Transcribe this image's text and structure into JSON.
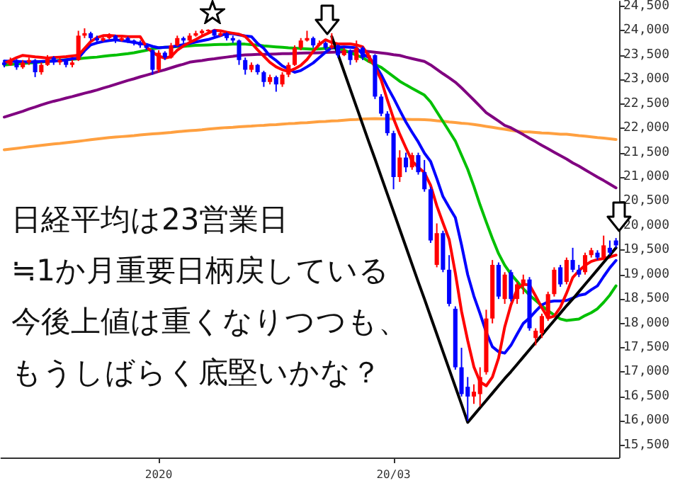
{
  "chart_data": {
    "type": "candlestick",
    "categories": [
      null,
      null,
      null,
      null,
      null,
      null,
      null,
      null,
      null,
      null,
      null,
      null,
      null,
      null,
      null,
      null,
      null,
      null,
      null,
      null,
      null,
      null,
      null,
      null,
      null,
      "2020",
      null,
      null,
      null,
      null,
      null,
      null,
      null,
      null,
      null,
      null,
      null,
      null,
      null,
      null,
      null,
      null,
      null,
      null,
      null,
      null,
      null,
      null,
      null,
      null,
      null,
      null,
      null,
      null,
      null,
      null,
      null,
      null,
      null,
      null,
      null,
      null,
      null,
      "20/03",
      null,
      null,
      null,
      null,
      null,
      null,
      null,
      null,
      null,
      null,
      null,
      null,
      null,
      null,
      null,
      null,
      null,
      null,
      null,
      null,
      null,
      null,
      null,
      null,
      null,
      null,
      null,
      null,
      null,
      null,
      null,
      null,
      null,
      null,
      null,
      null
    ],
    "ohlc": [
      [
        23350,
        23400,
        23250,
        23300
      ],
      [
        23300,
        23450,
        23280,
        23400
      ],
      [
        23400,
        23420,
        23200,
        23250
      ],
      [
        23250,
        23400,
        23220,
        23350
      ],
      [
        23350,
        23450,
        23300,
        23400
      ],
      [
        23400,
        23420,
        23050,
        23150
      ],
      [
        23150,
        23350,
        23100,
        23300
      ],
      [
        23300,
        23500,
        23280,
        23450
      ],
      [
        23450,
        23480,
        23300,
        23350
      ],
      [
        23350,
        23450,
        23300,
        23400
      ],
      [
        23400,
        23420,
        23250,
        23300
      ],
      [
        23300,
        23400,
        23250,
        23350
      ],
      [
        23400,
        24000,
        23380,
        23900
      ],
      [
        23900,
        24050,
        23850,
        23950
      ],
      [
        23950,
        23980,
        23800,
        23850
      ],
      [
        23850,
        23900,
        23750,
        23800
      ],
      [
        23800,
        23900,
        23780,
        23850
      ],
      [
        23850,
        23950,
        23820,
        23900
      ],
      [
        23900,
        23920,
        23750,
        23800
      ],
      [
        23800,
        23900,
        23780,
        23850
      ],
      [
        23850,
        23880,
        23750,
        23800
      ],
      [
        23800,
        23820,
        23700,
        23750
      ],
      [
        23750,
        23800,
        23650,
        23700
      ],
      [
        23700,
        23720,
        23600,
        23650
      ],
      [
        23600,
        23620,
        23100,
        23200
      ],
      [
        23200,
        23600,
        23150,
        23550
      ],
      [
        23550,
        23580,
        23400,
        23450
      ],
      [
        23450,
        23750,
        23430,
        23700
      ],
      [
        23700,
        23900,
        23680,
        23850
      ],
      [
        23850,
        23880,
        23750,
        23800
      ],
      [
        23800,
        23950,
        23780,
        23900
      ],
      [
        23900,
        24000,
        23880,
        23950
      ],
      [
        23950,
        24030,
        23900,
        24000
      ],
      [
        24000,
        24030,
        23950,
        24020
      ],
      [
        24020,
        24030,
        23850,
        23900
      ],
      [
        23900,
        24000,
        23880,
        23950
      ],
      [
        23950,
        23970,
        23800,
        23850
      ],
      [
        23850,
        23900,
        23750,
        23800
      ],
      [
        23800,
        23820,
        23300,
        23400
      ],
      [
        23400,
        23450,
        23100,
        23200
      ],
      [
        23200,
        23350,
        23150,
        23300
      ],
      [
        23300,
        23320,
        23100,
        23150
      ],
      [
        23150,
        23180,
        22850,
        22950
      ],
      [
        22950,
        23100,
        22900,
        23050
      ],
      [
        23050,
        23080,
        22750,
        22900
      ],
      [
        22900,
        23150,
        22850,
        23100
      ],
      [
        23100,
        23350,
        23050,
        23300
      ],
      [
        23300,
        23700,
        23280,
        23650
      ],
      [
        23650,
        23850,
        23600,
        23800
      ],
      [
        23800,
        24000,
        23780,
        23850
      ],
      [
        23850,
        23880,
        23650,
        23700
      ],
      [
        23700,
        23800,
        23680,
        23750
      ],
      [
        23750,
        23780,
        23600,
        23650
      ],
      [
        23650,
        23950,
        23620,
        23700
      ],
      [
        23700,
        23720,
        23450,
        23500
      ],
      [
        23500,
        23650,
        23480,
        23600
      ],
      [
        23600,
        23620,
        23300,
        23400
      ],
      [
        23400,
        23800,
        23350,
        23650
      ],
      [
        23650,
        23680,
        23400,
        23450
      ],
      [
        23450,
        23550,
        23350,
        23500
      ],
      [
        23500,
        23520,
        22600,
        22650
      ],
      [
        22650,
        22700,
        22250,
        22300
      ],
      [
        22300,
        22350,
        21850,
        21900
      ],
      [
        21900,
        21950,
        20750,
        21000
      ],
      [
        21000,
        21550,
        20900,
        21400
      ],
      [
        21400,
        21500,
        21100,
        21200
      ],
      [
        21200,
        21500,
        21150,
        21450
      ],
      [
        21450,
        21500,
        21050,
        21100
      ],
      [
        21100,
        21350,
        20700,
        20750
      ],
      [
        20750,
        20800,
        19650,
        19700
      ],
      [
        19200,
        20050,
        19150,
        19850
      ],
      [
        19850,
        19900,
        19050,
        19100
      ],
      [
        19100,
        19400,
        18350,
        18400
      ],
      [
        18300,
        18350,
        17050,
        17100
      ],
      [
        17100,
        17500,
        16500,
        16550
      ],
      [
        16700,
        16900,
        16000,
        16500
      ],
      [
        16500,
        16750,
        16350,
        16600
      ],
      [
        16550,
        17100,
        16300,
        16900
      ],
      [
        17000,
        18280,
        16950,
        18100
      ],
      [
        18100,
        19300,
        18000,
        19200
      ],
      [
        19200,
        19250,
        18500,
        18550
      ],
      [
        18500,
        19050,
        18400,
        19000
      ],
      [
        19050,
        19100,
        18450,
        18500
      ],
      [
        18500,
        18850,
        18400,
        18800
      ],
      [
        18800,
        19000,
        18600,
        18900
      ],
      [
        18900,
        18950,
        17850,
        17900
      ],
      [
        17700,
        17900,
        17550,
        17850
      ],
      [
        17800,
        18200,
        17700,
        18150
      ],
      [
        18100,
        18650,
        18050,
        18600
      ],
      [
        18600,
        19150,
        18550,
        19100
      ],
      [
        19150,
        19200,
        18750,
        18800
      ],
      [
        18850,
        19350,
        18800,
        19300
      ],
      [
        19300,
        19550,
        19050,
        19100
      ],
      [
        19100,
        19200,
        18950,
        19000
      ],
      [
        19050,
        19450,
        19000,
        19400
      ],
      [
        19400,
        19550,
        19350,
        19500
      ],
      [
        19450,
        19500,
        19300,
        19350
      ],
      [
        19350,
        19800,
        19300,
        19600
      ],
      [
        19550,
        19700,
        19400,
        19450
      ],
      [
        19700,
        19750,
        19550,
        19600
      ]
    ],
    "colors": [
      "#0000ff",
      "#ff0000",
      "#0000ff",
      "#ff0000",
      "#ff0000",
      "#0000ff",
      "#ff0000",
      "#ff0000",
      "#0000ff",
      "#ff0000",
      "#0000ff",
      "#ff0000",
      "#ff0000",
      "#ff0000",
      "#0000ff",
      "#0000ff",
      "#ff0000",
      "#ff0000",
      "#0000ff",
      "#ff0000",
      "#0000ff",
      "#0000ff",
      "#0000ff",
      "#0000ff",
      "#0000ff",
      "#ff0000",
      "#0000ff",
      "#ff0000",
      "#ff0000",
      "#0000ff",
      "#ff0000",
      "#ff0000",
      "#ff0000",
      "#ff0000",
      "#0000ff",
      "#ff0000",
      "#0000ff",
      "#0000ff",
      "#0000ff",
      "#0000ff",
      "#ff0000",
      "#0000ff",
      "#0000ff",
      "#ff0000",
      "#0000ff",
      "#ff0000",
      "#ff0000",
      "#ff0000",
      "#ff0000",
      "#ff0000",
      "#0000ff",
      "#ff0000",
      "#0000ff",
      "#ff0000",
      "#0000ff",
      "#ff0000",
      "#0000ff",
      "#ff0000",
      "#0000ff",
      "#ff0000",
      "#0000ff",
      "#0000ff",
      "#0000ff",
      "#0000ff",
      "#ff0000",
      "#0000ff",
      "#ff0000",
      "#0000ff",
      "#0000ff",
      "#0000ff",
      "#ff0000",
      "#0000ff",
      "#0000ff",
      "#0000ff",
      "#0000ff",
      "#0000ff",
      "#ff0000",
      "#ff0000",
      "#ff0000",
      "#ff0000",
      "#0000ff",
      "#ff0000",
      "#0000ff",
      "#ff0000",
      "#ff0000",
      "#0000ff",
      "#ff0000",
      "#ff0000",
      "#ff0000",
      "#ff0000",
      "#0000ff",
      "#ff0000",
      "#0000ff",
      "#0000ff",
      "#ff0000",
      "#ff0000",
      "#0000ff",
      "#ff0000",
      "#0000ff",
      "#0000ff"
    ],
    "series": [
      {
        "type": "line",
        "color": "#ffa040",
        "values": [
          21560,
          21575,
          21590,
          21605,
          21620,
          21635,
          21650,
          21665,
          21680,
          21690,
          21705,
          21720,
          21735,
          21750,
          21765,
          21780,
          21795,
          21810,
          21820,
          21830,
          21840,
          21850,
          21865,
          21875,
          21885,
          21895,
          21905,
          21915,
          21930,
          21940,
          21950,
          21960,
          21970,
          21985,
          21995,
          22005,
          22015,
          22020,
          22030,
          22040,
          22045,
          22055,
          22060,
          22070,
          22075,
          22085,
          22095,
          22100,
          22110,
          22115,
          22125,
          22135,
          22140,
          22150,
          22155,
          22165,
          22175,
          22180,
          22190,
          22195,
          22200,
          22195,
          22195,
          22190,
          22190,
          22185,
          22180,
          22180,
          22175,
          22170,
          22155,
          22145,
          22130,
          22120,
          22105,
          22095,
          22080,
          22060,
          22040,
          22020,
          22000,
          21980,
          21960,
          21940,
          21930,
          21925,
          21915,
          21905,
          21900,
          21890,
          21880,
          21880,
          21865,
          21850,
          21840,
          21825,
          21810,
          21800,
          21785,
          21770
        ]
      },
      {
        "type": "line",
        "color": "#800080",
        "values": [
          22230,
          22270,
          22310,
          22350,
          22395,
          22435,
          22480,
          22520,
          22555,
          22585,
          22620,
          22650,
          22685,
          22720,
          22750,
          22785,
          22825,
          22860,
          22900,
          22940,
          22980,
          23015,
          23055,
          23090,
          23125,
          23165,
          23200,
          23240,
          23280,
          23315,
          23355,
          23375,
          23390,
          23410,
          23425,
          23445,
          23460,
          23475,
          23495,
          23505,
          23510,
          23515,
          23515,
          23520,
          23525,
          23530,
          23530,
          23535,
          23540,
          23545,
          23545,
          23550,
          23555,
          23560,
          23565,
          23570,
          23575,
          23585,
          23590,
          23575,
          23560,
          23545,
          23530,
          23510,
          23495,
          23460,
          23430,
          23400,
          23370,
          23300,
          23210,
          23120,
          23035,
          22945,
          22830,
          22705,
          22580,
          22450,
          22320,
          22235,
          22150,
          22060,
          22010,
          21940,
          21870,
          21795,
          21725,
          21650,
          21580,
          21510,
          21440,
          21370,
          21290,
          21225,
          21150,
          21075,
          21000,
          20930,
          20855,
          20780
        ]
      },
      {
        "type": "line",
        "color": "#00c000",
        "values": [
          23300,
          23310,
          23320,
          23330,
          23340,
          23350,
          23360,
          23370,
          23380,
          23395,
          23405,
          23415,
          23425,
          23440,
          23450,
          23460,
          23475,
          23490,
          23500,
          23515,
          23530,
          23550,
          23575,
          23600,
          23630,
          23650,
          23660,
          23665,
          23675,
          23680,
          23690,
          23700,
          23705,
          23710,
          23715,
          23720,
          23720,
          23725,
          23730,
          23725,
          23715,
          23705,
          23690,
          23680,
          23670,
          23660,
          23650,
          23645,
          23635,
          23630,
          23620,
          23630,
          23640,
          23645,
          23650,
          23600,
          23550,
          23500,
          23450,
          23370,
          23310,
          23250,
          23155,
          23060,
          22965,
          22890,
          22820,
          22750,
          22680,
          22540,
          22340,
          22140,
          21940,
          21740,
          21450,
          21160,
          20810,
          20430,
          20080,
          19740,
          19430,
          19190,
          19010,
          18860,
          18710,
          18580,
          18470,
          18360,
          18260,
          18170,
          18090,
          18060,
          18075,
          18090,
          18160,
          18220,
          18300,
          18430,
          18580,
          18770
        ]
      },
      {
        "type": "line",
        "color": "#0000ff",
        "values": [
          23380,
          23375,
          23370,
          23365,
          23360,
          23365,
          23370,
          23375,
          23380,
          23385,
          23405,
          23425,
          23440,
          23590,
          23710,
          23750,
          23780,
          23800,
          23815,
          23800,
          23780,
          23760,
          23740,
          23720,
          23680,
          23650,
          23660,
          23670,
          23690,
          23715,
          23740,
          23770,
          23795,
          23820,
          23860,
          23900,
          23945,
          23940,
          23915,
          23895,
          23880,
          23740,
          23640,
          23480,
          23390,
          23280,
          23215,
          23150,
          23185,
          23260,
          23340,
          23450,
          23560,
          23655,
          23660,
          23670,
          23660,
          23650,
          23520,
          23450,
          23310,
          23100,
          22850,
          22620,
          22370,
          22130,
          21920,
          21720,
          21490,
          21320,
          20970,
          20600,
          20380,
          20170,
          19610,
          19000,
          18560,
          18200,
          17820,
          17520,
          17420,
          17390,
          17550,
          17780,
          18000,
          18110,
          18250,
          18380,
          18440,
          18460,
          18460,
          18470,
          18520,
          18575,
          18600,
          18690,
          18770,
          18960,
          19140,
          19290
        ]
      },
      {
        "type": "line",
        "color": "#ff0000",
        "values": [
          23330,
          23390,
          23450,
          23495,
          23480,
          23465,
          23455,
          23440,
          23450,
          23460,
          23470,
          23485,
          23500,
          23640,
          23780,
          23860,
          23900,
          23905,
          23895,
          23890,
          23880,
          23880,
          23880,
          23670,
          23560,
          23480,
          23440,
          23470,
          23600,
          23690,
          23760,
          23820,
          23890,
          23950,
          24010,
          24000,
          23970,
          23950,
          23930,
          23880,
          23750,
          23610,
          23480,
          23350,
          23260,
          23200,
          23165,
          23220,
          23290,
          23410,
          23580,
          23720,
          23815,
          23760,
          23730,
          23730,
          23730,
          23710,
          23670,
          23480,
          23260,
          22990,
          22580,
          22200,
          21880,
          21600,
          21330,
          21200,
          21090,
          20830,
          20410,
          20060,
          19720,
          19030,
          18250,
          17650,
          17110,
          16800,
          16720,
          16900,
          17290,
          17930,
          18380,
          18700,
          18800,
          18790,
          18560,
          18320,
          18110,
          18150,
          18330,
          18620,
          18940,
          19080,
          19190,
          19270,
          19310,
          19330,
          19360,
          19400
        ]
      },
      {
        "type": "line",
        "color": "#000000",
        "values": [
          null,
          null,
          null,
          null,
          null,
          null,
          null,
          null,
          null,
          null,
          null,
          null,
          null,
          null,
          null,
          null,
          null,
          null,
          null,
          null,
          null,
          null,
          null,
          null,
          null,
          null,
          null,
          null,
          null,
          null,
          null,
          null,
          null,
          null,
          null,
          null,
          null,
          null,
          null,
          null,
          null,
          null,
          null,
          null,
          null,
          null,
          null,
          null,
          null,
          null,
          null,
          null,
          null,
          23880,
          23520,
          23160,
          22800,
          22440,
          22080,
          21720,
          21370,
          21010,
          20650,
          20290,
          19930,
          19570,
          19210,
          18850,
          18500,
          18140,
          17780,
          17420,
          17060,
          16700,
          16340,
          15970,
          16120,
          16270,
          16420,
          16570,
          16720,
          16870,
          17010,
          17160,
          17310,
          17460,
          17610,
          17760,
          17910,
          18060,
          18210,
          18360,
          18500,
          18650,
          18800,
          18950,
          19100,
          19250,
          19400,
          19550
        ]
      }
    ],
    "ylim": [
      15250,
      24600
    ],
    "yticks": [
      {
        "value": 15500,
        "label": "15,500"
      },
      {
        "value": 16000,
        "label": "16,000"
      },
      {
        "value": 16500,
        "label": "16,500"
      },
      {
        "value": 17000,
        "label": "17,000"
      },
      {
        "value": 17500,
        "label": "17,500"
      },
      {
        "value": 18000,
        "label": "18,000"
      },
      {
        "value": 18500,
        "label": "18,500"
      },
      {
        "value": 19000,
        "label": "19,000"
      },
      {
        "value": 19500,
        "label": "19,500"
      },
      {
        "value": 20000,
        "label": "20,000"
      },
      {
        "value": 20500,
        "label": "20,500"
      },
      {
        "value": 21000,
        "label": "21,000"
      },
      {
        "value": 21500,
        "label": "21,500"
      },
      {
        "value": 22000,
        "label": "22,000"
      },
      {
        "value": 22500,
        "label": "22,500"
      },
      {
        "value": 23000,
        "label": "23,000"
      },
      {
        "value": 23500,
        "label": "23,500"
      },
      {
        "value": 24000,
        "label": "24,000"
      },
      {
        "value": 24500,
        "label": "24,500"
      }
    ],
    "annotations": [
      "日経平均は23営業日",
      "≒1か月重要日柄戻している",
      "今後上値は重くなりつつも、",
      "もうしばらく底堅いかな？"
    ]
  }
}
